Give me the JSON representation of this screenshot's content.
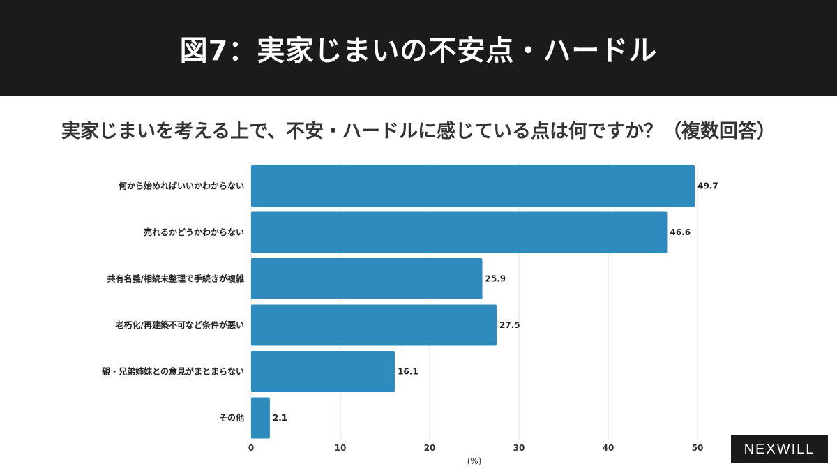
{
  "header": {
    "title": "図7：実家じまいの不安点・ハードル"
  },
  "question": "実家じまいを考える上で、不安・ハードルに感じている点は何ですか？（複数回答）",
  "logo": "NEXWILL",
  "chart_data": {
    "type": "bar",
    "orientation": "horizontal",
    "categories": [
      "何から始めればいいかわからない",
      "売れるかどうかわからない",
      "共有名義/相続未整理で手続きが複雑",
      "老朽化/再建築不可など条件が悪い",
      "親・兄弟姉妹との意見がまとまらない",
      "その他"
    ],
    "values": [
      49.7,
      46.6,
      25.9,
      27.5,
      16.1,
      2.1
    ],
    "value_labels": [
      "49.7",
      "46.6",
      "25.9",
      "27.5",
      "16.1",
      "2.1"
    ],
    "xlabel": "(%)",
    "xlim": [
      0,
      50
    ],
    "xticks": [
      "0",
      "10",
      "20",
      "30",
      "40",
      "50"
    ],
    "grid": "vertical",
    "bar_color": "#2e8bbd"
  }
}
